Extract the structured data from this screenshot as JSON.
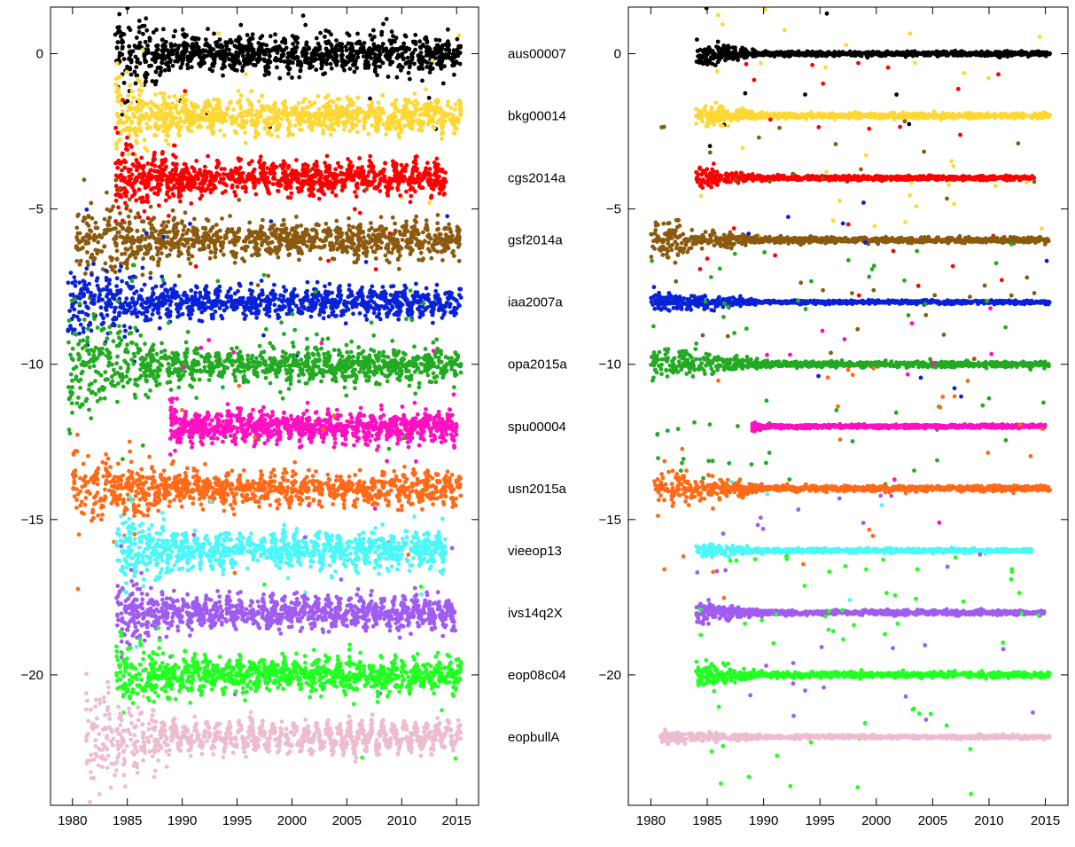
{
  "chart_data": [
    {
      "type": "scatter",
      "panel": "left",
      "xlim": [
        1978,
        2017
      ],
      "ylim": [
        -24.2,
        1.5
      ],
      "x_ticks": [
        1980,
        1985,
        1990,
        1995,
        2000,
        2005,
        2010,
        2015
      ],
      "y_ticks": [
        0,
        -5,
        -10,
        -15,
        -20
      ],
      "grid": false,
      "series": [
        {
          "name": "aus00007",
          "color": "#000000",
          "start": 1983.9,
          "end": 2015.4,
          "offset": 0,
          "scatter": 0.55,
          "early": 1.1,
          "outliers": 0.01
        },
        {
          "name": "bkg00014",
          "color": "#fdd835",
          "start": 1983.9,
          "end": 2015.4,
          "offset": -2,
          "scatter": 0.55,
          "early": 1.0,
          "outliers": 0.01
        },
        {
          "name": "cgs2014a",
          "color": "#ff0000",
          "start": 1983.9,
          "end": 2014.1,
          "offset": -4,
          "scatter": 0.5,
          "early": 0.9,
          "outliers": 0.01
        },
        {
          "name": "gsf2014a",
          "color": "#8b5a0f",
          "start": 1980.3,
          "end": 2015.4,
          "offset": -6,
          "scatter": 0.55,
          "early": 1.2,
          "outliers": 0.01
        },
        {
          "name": "iaa2007a",
          "color": "#0a22d6",
          "start": 1979.6,
          "end": 2015.4,
          "offset": -8,
          "scatter": 0.45,
          "early": 1.0,
          "outliers": 0.01
        },
        {
          "name": "opa2015a",
          "color": "#22aa22",
          "start": 1979.6,
          "end": 2015.4,
          "offset": -10,
          "scatter": 0.55,
          "early": 1.4,
          "outliers": 0.03
        },
        {
          "name": "spu00004",
          "color": "#ff10c0",
          "start": 1988.9,
          "end": 2015.0,
          "offset": -12,
          "scatter": 0.45,
          "early": 0.6,
          "outliers": 0.01
        },
        {
          "name": "usn2015a",
          "color": "#ff6a18",
          "start": 1980.0,
          "end": 2015.4,
          "offset": -14,
          "scatter": 0.5,
          "early": 1.1,
          "outliers": 0.01
        },
        {
          "name": "vieeop13",
          "color": "#4cf7f7",
          "start": 1984.0,
          "end": 2014.0,
          "offset": -16,
          "scatter": 0.55,
          "early": 0.9,
          "outliers": 0.01
        },
        {
          "name": "ivs14q2X",
          "color": "#a05cf0",
          "start": 1984.0,
          "end": 2014.9,
          "offset": -18,
          "scatter": 0.5,
          "early": 0.8,
          "outliers": 0.01
        },
        {
          "name": "eop08c04",
          "color": "#22ff22",
          "start": 1984.0,
          "end": 2015.4,
          "offset": -20,
          "scatter": 0.55,
          "early": 0.9,
          "outliers": 0.01
        },
        {
          "name": "eopbullA",
          "color": "#eebcd0",
          "start": 1981.2,
          "end": 2015.4,
          "offset": -22,
          "scatter": 0.35,
          "early": 1.6,
          "outliers": 0.0
        }
      ]
    },
    {
      "type": "scatter",
      "panel": "right",
      "xlim": [
        1978,
        2017
      ],
      "ylim": [
        -24.2,
        1.5
      ],
      "x_ticks": [
        1980,
        1985,
        1990,
        1995,
        2000,
        2005,
        2010,
        2015
      ],
      "y_ticks": [
        0,
        -5,
        -10,
        -15,
        -20
      ],
      "grid": false,
      "series": [
        {
          "name": "aus00007",
          "color": "#000000",
          "start": 1984.0,
          "end": 2015.4,
          "offset": 0,
          "scatter": 0.08,
          "early": 0.35,
          "outliers": 0.01
        },
        {
          "name": "bkg00014",
          "color": "#fdd835",
          "start": 1984.0,
          "end": 2015.4,
          "offset": -2,
          "scatter": 0.09,
          "early": 0.4,
          "outliers": 0.04
        },
        {
          "name": "cgs2014a",
          "color": "#ff0000",
          "start": 1984.0,
          "end": 2014.0,
          "offset": -4,
          "scatter": 0.07,
          "early": 0.35,
          "outliers": 0.03
        },
        {
          "name": "gsf2014a",
          "color": "#8b5a0f",
          "start": 1980.0,
          "end": 2015.4,
          "offset": -6,
          "scatter": 0.1,
          "early": 0.6,
          "outliers": 0.04
        },
        {
          "name": "iaa2007a",
          "color": "#0a22d6",
          "start": 1980.0,
          "end": 2015.4,
          "offset": -8,
          "scatter": 0.06,
          "early": 0.35,
          "outliers": 0.01
        },
        {
          "name": "opa2015a",
          "color": "#22aa22",
          "start": 1980.0,
          "end": 2015.4,
          "offset": -10,
          "scatter": 0.1,
          "early": 0.6,
          "outliers": 0.06
        },
        {
          "name": "spu00004",
          "color": "#ff10c0",
          "start": 1989.0,
          "end": 2015.0,
          "offset": -12,
          "scatter": 0.06,
          "early": 0.15,
          "outliers": 0.01
        },
        {
          "name": "usn2015a",
          "color": "#ff6a18",
          "start": 1980.3,
          "end": 2015.4,
          "offset": -14,
          "scatter": 0.1,
          "early": 0.7,
          "outliers": 0.03
        },
        {
          "name": "vieeop13",
          "color": "#4cf7f7",
          "start": 1984.0,
          "end": 2014.0,
          "offset": -16,
          "scatter": 0.07,
          "early": 0.2,
          "outliers": 0.01
        },
        {
          "name": "ivs14q2X",
          "color": "#a05cf0",
          "start": 1984.0,
          "end": 2014.9,
          "offset": -18,
          "scatter": 0.08,
          "early": 0.35,
          "outliers": 0.03
        },
        {
          "name": "eop08c04",
          "color": "#22ff22",
          "start": 1984.0,
          "end": 2015.4,
          "offset": -20,
          "scatter": 0.1,
          "early": 0.4,
          "outliers": 0.06
        },
        {
          "name": "eopbullA",
          "color": "#eebcd0",
          "start": 1980.8,
          "end": 2015.4,
          "offset": -22,
          "scatter": 0.06,
          "early": 0.2,
          "outliers": 0.0
        }
      ]
    }
  ]
}
